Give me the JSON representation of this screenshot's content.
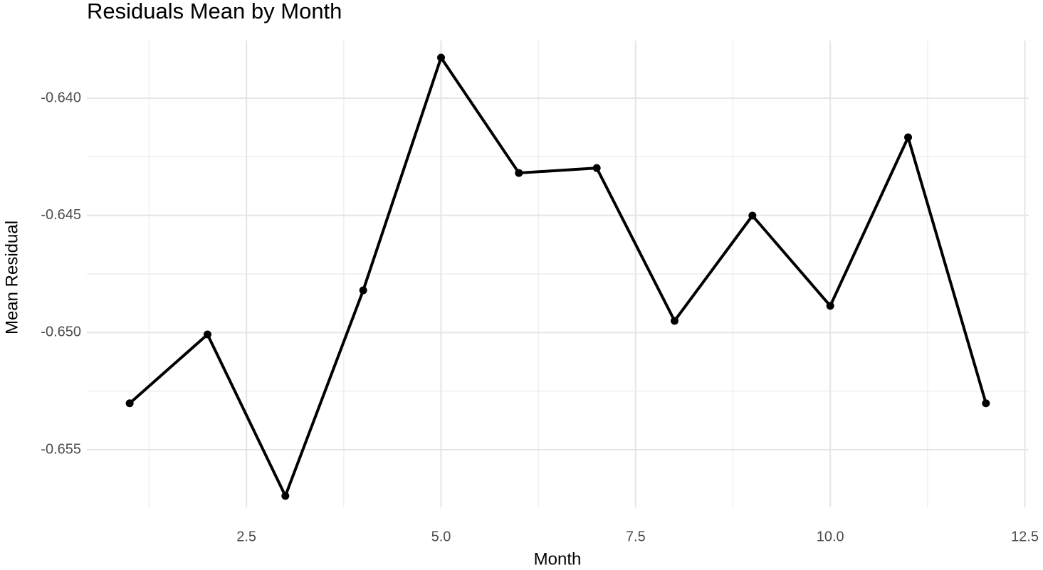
{
  "chart_data": {
    "type": "line",
    "title": "Residuals Mean by Month",
    "x_label": "Month",
    "y_label": "Mean Residual",
    "x": [
      1,
      2,
      3,
      4,
      5,
      6,
      7,
      8,
      9,
      10,
      11,
      12
    ],
    "series": [
      {
        "color": "#000000",
        "values": [
          -0.65302,
          -0.65008,
          -0.65697,
          -0.6482,
          -0.63827,
          -0.64319,
          -0.64298,
          -0.6495,
          -0.64501,
          -0.64886,
          -0.64167,
          -0.65302
        ]
      }
    ],
    "xlim": [
      0.45,
      12.55
    ],
    "xticks": [
      2.5,
      {
        "value": 5,
        "label": "5.0"
      },
      7.5,
      {
        "value": 10,
        "label": "10.0"
      },
      12.5
    ],
    "ylim": [
      -0.65746,
      -0.63754
    ],
    "yticks": [
      {
        "value": -0.64,
        "label": "-0.640"
      },
      {
        "value": -0.645,
        "label": "-0.645"
      },
      {
        "value": -0.65,
        "label": "-0.650"
      },
      {
        "value": -0.655,
        "label": "-0.655"
      }
    ],
    "grid": true
  }
}
